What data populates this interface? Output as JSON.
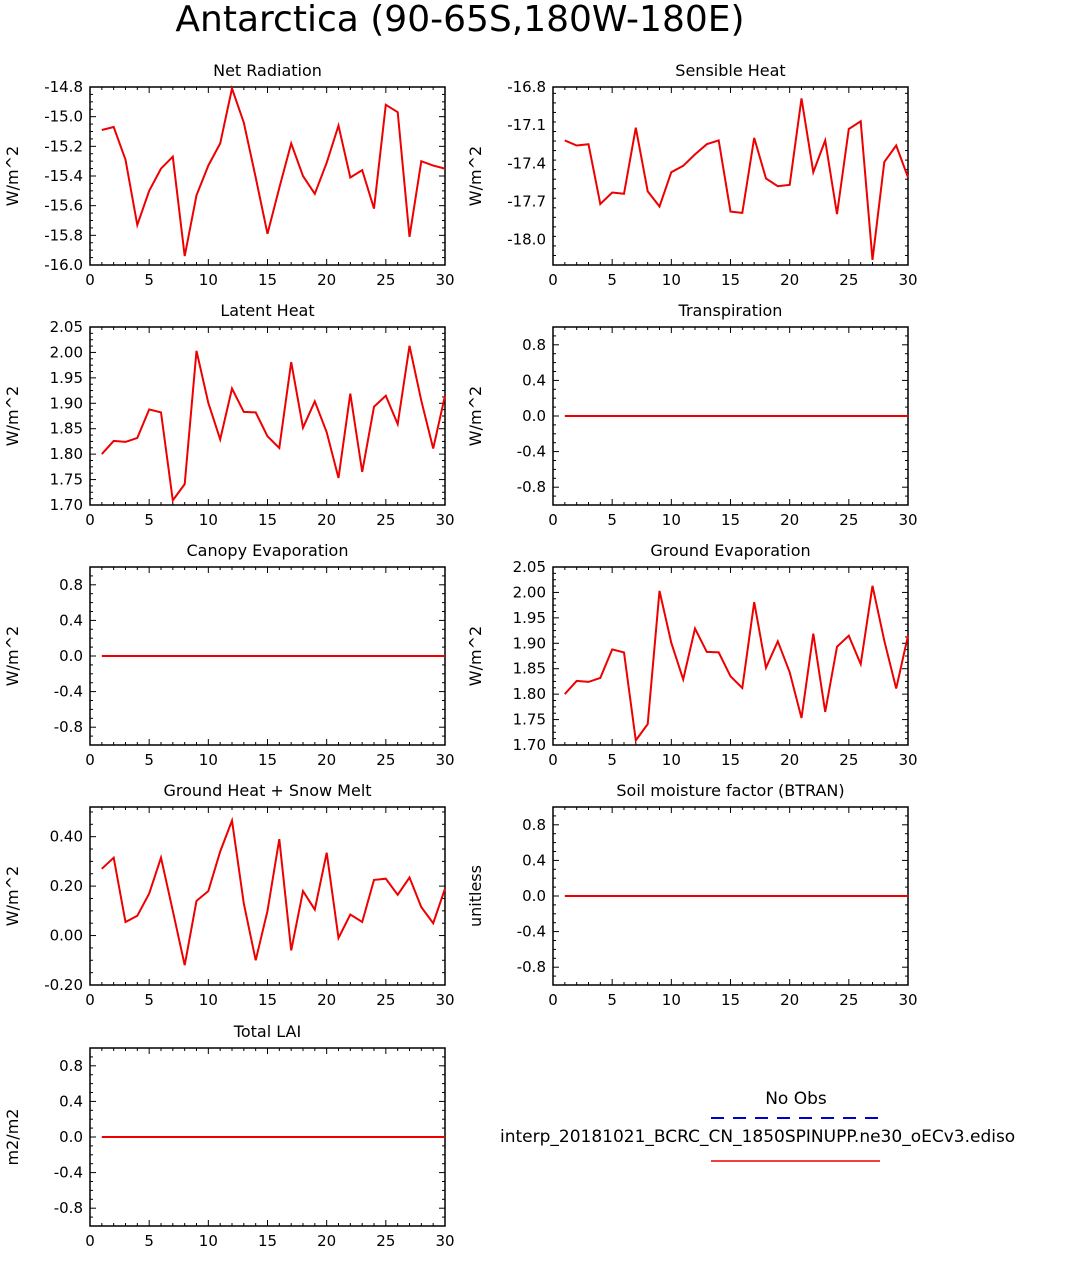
{
  "figure": {
    "title": "Antarctica (90-65S,180W-180E)",
    "legend": {
      "entries": [
        {
          "label": "No Obs",
          "color": "#0000cc",
          "style": "dashed"
        },
        {
          "label": "interp_20181021_BCRC_CN_1850SPINUPP.ne30_oECv3.ediso",
          "color": "#ee0000",
          "style": "solid"
        }
      ]
    }
  },
  "chart_data": [
    {
      "type": "line",
      "title": "Net Radiation",
      "ylabel": "W/m^2",
      "xlim": [
        0,
        30
      ],
      "ylim": [
        -16.0,
        -14.8
      ],
      "xticks": [
        0,
        5,
        10,
        15,
        20,
        25,
        30
      ],
      "yticks": [
        "-14.8",
        "-15.0",
        "-15.2",
        "-15.4",
        "-15.6",
        "-15.8",
        "-16.0"
      ],
      "x": [
        1,
        2,
        3,
        4,
        5,
        6,
        7,
        8,
        9,
        10,
        11,
        12,
        13,
        14,
        15,
        16,
        17,
        18,
        19,
        20,
        21,
        22,
        23,
        24,
        25,
        26,
        27,
        28,
        29,
        30
      ],
      "series": [
        {
          "color": "#ee0000",
          "values": [
            -15.09,
            -15.07,
            -15.29,
            -15.73,
            -15.5,
            -15.35,
            -15.27,
            -15.94,
            -15.53,
            -15.33,
            -15.18,
            -14.81,
            -15.04,
            -15.41,
            -15.79,
            -15.48,
            -15.18,
            -15.4,
            -15.52,
            -15.31,
            -15.06,
            -15.41,
            -15.36,
            -15.62,
            -14.92,
            -14.97,
            -15.81,
            -15.3,
            -15.33,
            -15.35
          ]
        }
      ]
    },
    {
      "type": "line",
      "title": "Sensible Heat",
      "ylabel": "W/m^2",
      "xlim": [
        0,
        30
      ],
      "ylim": [
        -18.2,
        -16.8
      ],
      "xticks": [
        0,
        5,
        10,
        15,
        20,
        25,
        30
      ],
      "yticks": [
        "-16.8",
        "-17.1",
        "-17.4",
        "-17.7",
        "-18.0"
      ],
      "x": [
        1,
        2,
        3,
        4,
        5,
        6,
        7,
        8,
        9,
        10,
        11,
        12,
        13,
        14,
        15,
        16,
        17,
        18,
        19,
        20,
        21,
        22,
        23,
        24,
        25,
        26,
        27,
        28,
        29,
        30
      ],
      "series": [
        {
          "color": "#ee0000",
          "values": [
            -17.22,
            -17.26,
            -17.25,
            -17.72,
            -17.63,
            -17.64,
            -17.12,
            -17.62,
            -17.74,
            -17.47,
            -17.42,
            -17.33,
            -17.25,
            -17.22,
            -17.78,
            -17.79,
            -17.2,
            -17.52,
            -17.58,
            -17.57,
            -16.89,
            -17.47,
            -17.22,
            -17.8,
            -17.13,
            -17.07,
            -18.16,
            -17.39,
            -17.26,
            -17.51
          ]
        }
      ]
    },
    {
      "type": "line",
      "title": "Latent Heat",
      "ylabel": "W/m^2",
      "xlim": [
        0,
        30
      ],
      "ylim": [
        1.7,
        2.05
      ],
      "xticks": [
        0,
        5,
        10,
        15,
        20,
        25,
        30
      ],
      "yticks": [
        "2.05",
        "2.00",
        "1.95",
        "1.90",
        "1.85",
        "1.80",
        "1.75",
        "1.70"
      ],
      "x": [
        1,
        2,
        3,
        4,
        5,
        6,
        7,
        8,
        9,
        10,
        11,
        12,
        13,
        14,
        15,
        16,
        17,
        18,
        19,
        20,
        21,
        22,
        23,
        24,
        25,
        26,
        27,
        28,
        29,
        30
      ],
      "series": [
        {
          "color": "#ee0000",
          "values": [
            1.8,
            1.826,
            1.824,
            1.832,
            1.888,
            1.882,
            1.709,
            1.741,
            2.003,
            1.901,
            1.829,
            1.929,
            1.883,
            1.882,
            1.835,
            1.812,
            1.981,
            1.852,
            1.904,
            1.843,
            1.753,
            1.919,
            1.765,
            1.893,
            1.915,
            1.859,
            2.013,
            1.905,
            1.811,
            1.915
          ]
        }
      ]
    },
    {
      "type": "line",
      "title": "Transpiration",
      "ylabel": "W/m^2",
      "xlim": [
        0,
        30
      ],
      "ylim": [
        -1.0,
        1.0
      ],
      "xticks": [
        0,
        5,
        10,
        15,
        20,
        25,
        30
      ],
      "yticks": [
        "0.8",
        "0.4",
        "0.0",
        "-0.4",
        "-0.8"
      ],
      "x": [
        1,
        30
      ],
      "series": [
        {
          "color": "#ee0000",
          "values": [
            0.0,
            0.0
          ]
        }
      ]
    },
    {
      "type": "line",
      "title": "Canopy Evaporation",
      "ylabel": "W/m^2",
      "xlim": [
        0,
        30
      ],
      "ylim": [
        -1.0,
        1.0
      ],
      "xticks": [
        0,
        5,
        10,
        15,
        20,
        25,
        30
      ],
      "yticks": [
        "0.8",
        "0.4",
        "0.0",
        "-0.4",
        "-0.8"
      ],
      "x": [
        1,
        30
      ],
      "series": [
        {
          "color": "#ee0000",
          "values": [
            0.0,
            0.0
          ]
        }
      ]
    },
    {
      "type": "line",
      "title": "Ground Evaporation",
      "ylabel": "W/m^2",
      "xlim": [
        0,
        30
      ],
      "ylim": [
        1.7,
        2.05
      ],
      "xticks": [
        0,
        5,
        10,
        15,
        20,
        25,
        30
      ],
      "yticks": [
        "2.05",
        "2.00",
        "1.95",
        "1.90",
        "1.85",
        "1.80",
        "1.75",
        "1.70"
      ],
      "x": [
        1,
        2,
        3,
        4,
        5,
        6,
        7,
        8,
        9,
        10,
        11,
        12,
        13,
        14,
        15,
        16,
        17,
        18,
        19,
        20,
        21,
        22,
        23,
        24,
        25,
        26,
        27,
        28,
        29,
        30
      ],
      "series": [
        {
          "color": "#ee0000",
          "values": [
            1.8,
            1.826,
            1.824,
            1.832,
            1.888,
            1.882,
            1.709,
            1.741,
            2.003,
            1.901,
            1.829,
            1.929,
            1.883,
            1.882,
            1.835,
            1.812,
            1.981,
            1.852,
            1.904,
            1.843,
            1.753,
            1.919,
            1.765,
            1.893,
            1.915,
            1.859,
            2.013,
            1.905,
            1.811,
            1.915
          ]
        }
      ]
    },
    {
      "type": "line",
      "title": "Ground Heat + Snow Melt",
      "ylabel": "W/m^2",
      "xlim": [
        0,
        30
      ],
      "ylim": [
        -0.2,
        0.52
      ],
      "xticks": [
        0,
        5,
        10,
        15,
        20,
        25,
        30
      ],
      "yticks": [
        "0.40",
        "0.20",
        "0.00",
        "-0.20"
      ],
      "x": [
        1,
        2,
        3,
        4,
        5,
        6,
        7,
        8,
        9,
        10,
        11,
        12,
        13,
        14,
        15,
        16,
        17,
        18,
        19,
        20,
        21,
        22,
        23,
        24,
        25,
        26,
        27,
        28,
        29,
        30
      ],
      "series": [
        {
          "color": "#ee0000",
          "values": [
            0.27,
            0.315,
            0.055,
            0.08,
            0.17,
            0.315,
            0.1,
            -0.12,
            0.14,
            0.18,
            0.34,
            0.465,
            0.13,
            -0.1,
            0.1,
            0.39,
            -0.06,
            0.18,
            0.105,
            0.335,
            -0.01,
            0.085,
            0.055,
            0.225,
            0.23,
            0.165,
            0.235,
            0.115,
            0.05,
            0.19
          ]
        }
      ]
    },
    {
      "type": "line",
      "title": "Soil moisture factor (BTRAN)",
      "ylabel": "unitless",
      "xlim": [
        0,
        30
      ],
      "ylim": [
        -1.0,
        1.0
      ],
      "xticks": [
        0,
        5,
        10,
        15,
        20,
        25,
        30
      ],
      "yticks": [
        "0.8",
        "0.4",
        "0.0",
        "-0.4",
        "-0.8"
      ],
      "x": [
        1,
        30
      ],
      "series": [
        {
          "color": "#ee0000",
          "values": [
            0.0,
            0.0
          ]
        }
      ]
    },
    {
      "type": "line",
      "title": "Total LAI",
      "ylabel": "m2/m2",
      "xlim": [
        0,
        30
      ],
      "ylim": [
        -1.0,
        1.0
      ],
      "xticks": [
        0,
        5,
        10,
        15,
        20,
        25,
        30
      ],
      "yticks": [
        "0.8",
        "0.4",
        "0.0",
        "-0.4",
        "-0.8"
      ],
      "x": [
        1,
        30
      ],
      "series": [
        {
          "color": "#ee0000",
          "values": [
            0.0,
            0.0
          ]
        }
      ]
    }
  ]
}
